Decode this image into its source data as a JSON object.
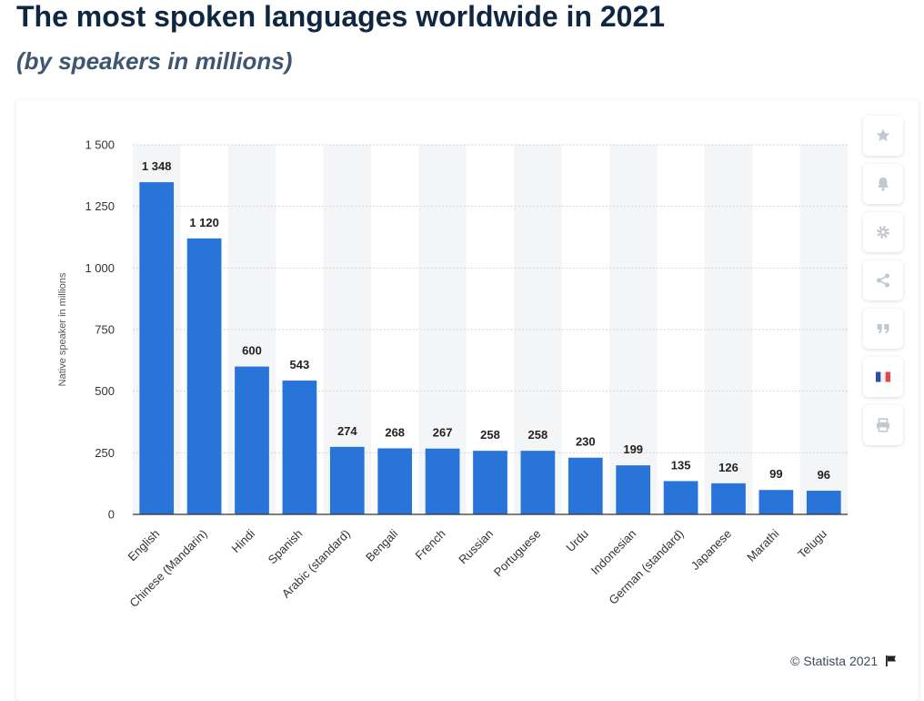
{
  "title": "The most spoken languages worldwide in 2021",
  "subtitle": "(by speakers in millions)",
  "credit": "© Statista 2021",
  "colors": {
    "bar": "#2874d9",
    "band": "#f4f5f7",
    "grid": "#c6c6c6",
    "axis": "#333333"
  },
  "toolbar": [
    {
      "name": "star-icon"
    },
    {
      "name": "bell-icon"
    },
    {
      "name": "gear-icon"
    },
    {
      "name": "share-icon"
    },
    {
      "name": "quote-icon"
    },
    {
      "name": "french-flag-icon"
    },
    {
      "name": "print-icon"
    }
  ],
  "chart_data": {
    "type": "bar",
    "title": "",
    "xlabel": "",
    "ylabel": "Native speaker in millions",
    "ylim": [
      0,
      1500
    ],
    "yticks": [
      0,
      250,
      500,
      750,
      1000,
      1250,
      1500
    ],
    "ytick_labels": [
      "0",
      "250",
      "500",
      "750",
      "1 000",
      "1 250",
      "1 500"
    ],
    "grid": true,
    "categories": [
      "English",
      "Chinese (Mandarin)",
      "Hindi",
      "Spanish",
      "Arabic (standard)",
      "Bengali",
      "French",
      "Russian",
      "Portuguese",
      "Urdu",
      "Indonesian",
      "German (standard)",
      "Japanese",
      "Marathi",
      "Telugu"
    ],
    "values": [
      1348,
      1120,
      600,
      543,
      274,
      268,
      267,
      258,
      258,
      230,
      199,
      135,
      126,
      99,
      96
    ],
    "value_labels": [
      "1 348",
      "1 120",
      "600",
      "543",
      "274",
      "268",
      "267",
      "258",
      "258",
      "230",
      "199",
      "135",
      "126",
      "99",
      "96"
    ]
  }
}
